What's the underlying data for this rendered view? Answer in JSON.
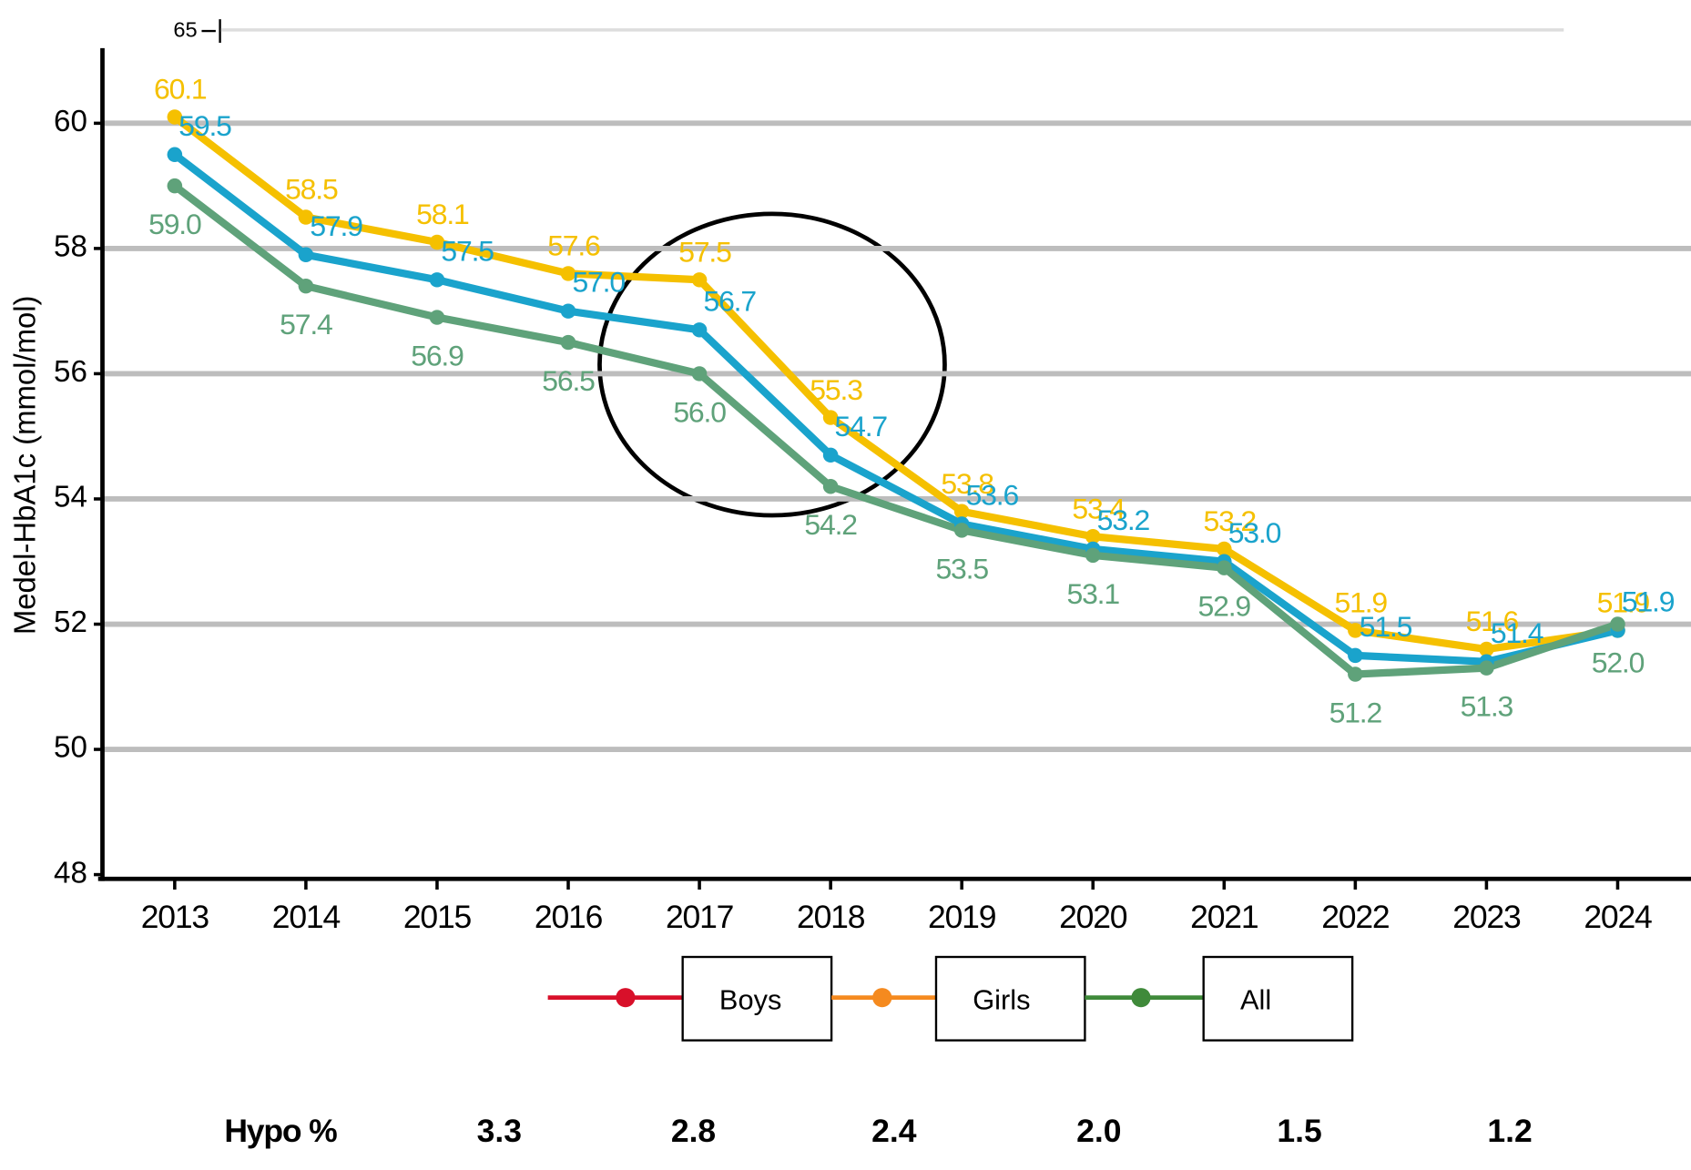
{
  "chart_data": {
    "type": "line",
    "y_label": "Medel-HbA1c (mmol/mol)",
    "categories": [
      "2013",
      "2014",
      "2015",
      "2016",
      "2017",
      "2018",
      "2019",
      "2020",
      "2021",
      "2022",
      "2023",
      "2024"
    ],
    "series": [
      {
        "name": "Boys",
        "color": "#f5c000",
        "legend_color": "#d8102a",
        "values": [
          60.1,
          58.5,
          58.1,
          57.6,
          57.5,
          55.3,
          53.8,
          53.4,
          53.2,
          51.9,
          51.6,
          51.9
        ],
        "value_labels": [
          "60.1",
          "58.5",
          "58.1",
          "57.6",
          "57.5",
          "55.3",
          "53.8",
          "53.4",
          "53.2",
          "51.9",
          "51.6",
          "51.9"
        ]
      },
      {
        "name": "Girls",
        "color": "#1aa3cc",
        "legend_color": "#f58a1f",
        "values": [
          59.5,
          57.9,
          57.5,
          57.0,
          56.7,
          54.7,
          53.6,
          53.2,
          53.0,
          51.5,
          51.4,
          51.9
        ],
        "value_labels": [
          "59.5",
          "57.9",
          "57.5",
          "57.0",
          "56.7",
          "54.7",
          "53.6",
          "53.2",
          "53.0",
          "51.5",
          "51.4",
          "51.9"
        ]
      },
      {
        "name": "All",
        "color": "#5fa27a",
        "legend_color": "#3f8a3a",
        "values": [
          59.0,
          57.4,
          56.9,
          56.5,
          56.0,
          54.2,
          53.5,
          53.1,
          52.9,
          51.2,
          51.3,
          52.0
        ],
        "value_labels": [
          "59.0",
          "57.4",
          "56.9",
          "56.5",
          "56.0",
          "54.2",
          "53.5",
          "53.1",
          "52.9",
          "51.2",
          "51.3",
          "52.0"
        ]
      }
    ],
    "ylim": [
      48,
      61.2
    ],
    "yticks": [
      48,
      50,
      52,
      54,
      56,
      58,
      60
    ],
    "top_tick": 65,
    "grid": true
  },
  "hypo": {
    "label": "Hypo %",
    "values": [
      "3.3",
      "2.8",
      "2.4",
      "2.0",
      "1.5",
      "1.2"
    ]
  }
}
